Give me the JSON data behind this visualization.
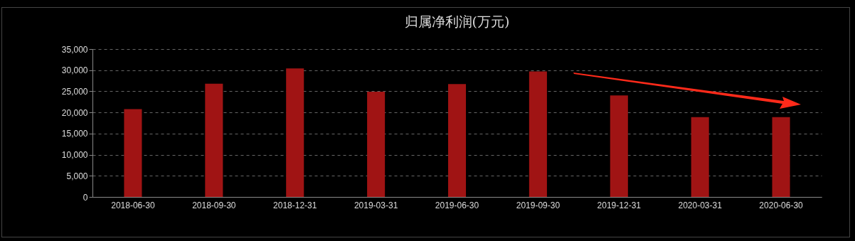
{
  "chart_data": {
    "type": "bar",
    "title": "归属净利润(万元)",
    "categories": [
      "2018-06-30",
      "2018-09-30",
      "2018-12-31",
      "2019-03-31",
      "2019-06-30",
      "2019-09-30",
      "2019-12-31",
      "2020-03-31",
      "2020-06-30"
    ],
    "values": [
      20800,
      26800,
      30400,
      24900,
      26700,
      29700,
      24000,
      18900,
      18900
    ],
    "color": "#a01414",
    "ylim": [
      0,
      35000
    ],
    "yticks": [
      {
        "value": 0,
        "label": "0"
      },
      {
        "value": 5000,
        "label": "5,000"
      },
      {
        "value": 10000,
        "label": "10,000"
      },
      {
        "value": 15000,
        "label": "15,000"
      },
      {
        "value": 20000,
        "label": "20,000"
      },
      {
        "value": 25000,
        "label": "25,000"
      },
      {
        "value": 30000,
        "label": "30,000"
      },
      {
        "value": 35000,
        "label": "35,000"
      }
    ],
    "grid": "y"
  }
}
